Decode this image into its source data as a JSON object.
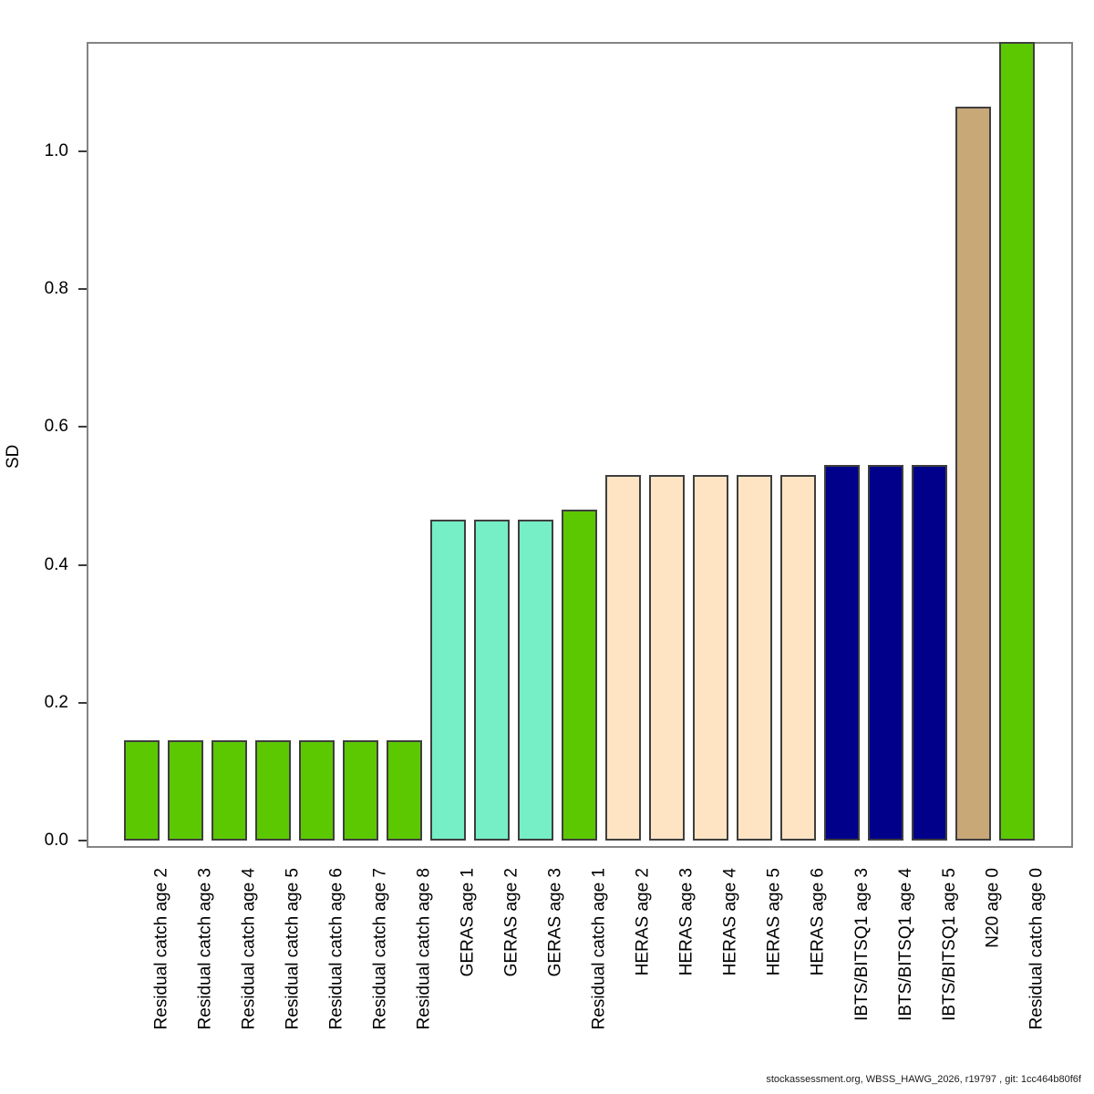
{
  "figure": {
    "background": "#ffffff"
  },
  "axis": {
    "box_color": "#848484",
    "tick_color": "#3a3a3a",
    "text_color": "#000000"
  },
  "footer": {
    "text": "stockassessment.org, WBSS_HAWG_2026, r19797 , git: 1cc464b80f6f"
  },
  "chart_data": {
    "type": "bar",
    "title": "",
    "xlabel": "",
    "ylabel": "SD",
    "ylim": [
      0,
      1.16
    ],
    "yticks": [
      0,
      0.2,
      0.4,
      0.6,
      0.8,
      1.0
    ],
    "ytick_labels": [
      "0.0",
      "0.2",
      "0.4",
      "0.6",
      "0.8",
      "1.0"
    ],
    "grid": false,
    "legend": "none",
    "bar_border_color": "#3f3f3f",
    "palette": {
      "residual_catch": "#5CC802",
      "geras": "#76EEC6",
      "heras": "#FFE4C4",
      "ibts_bitsq1": "#00008B",
      "n20": "#C9A878"
    },
    "bars": [
      {
        "label": "Residual catch age 2",
        "value": 0.145,
        "color": "#5CC802"
      },
      {
        "label": "Residual catch age 3",
        "value": 0.145,
        "color": "#5CC802"
      },
      {
        "label": "Residual catch age 4",
        "value": 0.145,
        "color": "#5CC802"
      },
      {
        "label": "Residual catch age 5",
        "value": 0.145,
        "color": "#5CC802"
      },
      {
        "label": "Residual catch age 6",
        "value": 0.145,
        "color": "#5CC802"
      },
      {
        "label": "Residual catch age 7",
        "value": 0.145,
        "color": "#5CC802"
      },
      {
        "label": "Residual catch age 8",
        "value": 0.145,
        "color": "#5CC802"
      },
      {
        "label": "GERAS age 1",
        "value": 0.465,
        "color": "#76EEC6"
      },
      {
        "label": "GERAS age 2",
        "value": 0.465,
        "color": "#76EEC6"
      },
      {
        "label": "GERAS age 3",
        "value": 0.465,
        "color": "#76EEC6"
      },
      {
        "label": "Residual catch age 1",
        "value": 0.48,
        "color": "#5CC802"
      },
      {
        "label": "HERAS age 2",
        "value": 0.53,
        "color": "#FFE4C4"
      },
      {
        "label": "HERAS age 3",
        "value": 0.53,
        "color": "#FFE4C4"
      },
      {
        "label": "HERAS age 4",
        "value": 0.53,
        "color": "#FFE4C4"
      },
      {
        "label": "HERAS age 5",
        "value": 0.53,
        "color": "#FFE4C4"
      },
      {
        "label": "HERAS age 6",
        "value": 0.53,
        "color": "#FFE4C4"
      },
      {
        "label": "IBTS/BITSQ1 age 3",
        "value": 0.545,
        "color": "#00008B"
      },
      {
        "label": "IBTS/BITSQ1 age 4",
        "value": 0.545,
        "color": "#00008B"
      },
      {
        "label": "IBTS/BITSQ1 age 5",
        "value": 0.545,
        "color": "#00008B"
      },
      {
        "label": "N20 age 0",
        "value": 1.065,
        "color": "#C9A878"
      },
      {
        "label": "Residual catch age 0",
        "value": 1.16,
        "color": "#5CC802"
      }
    ]
  }
}
